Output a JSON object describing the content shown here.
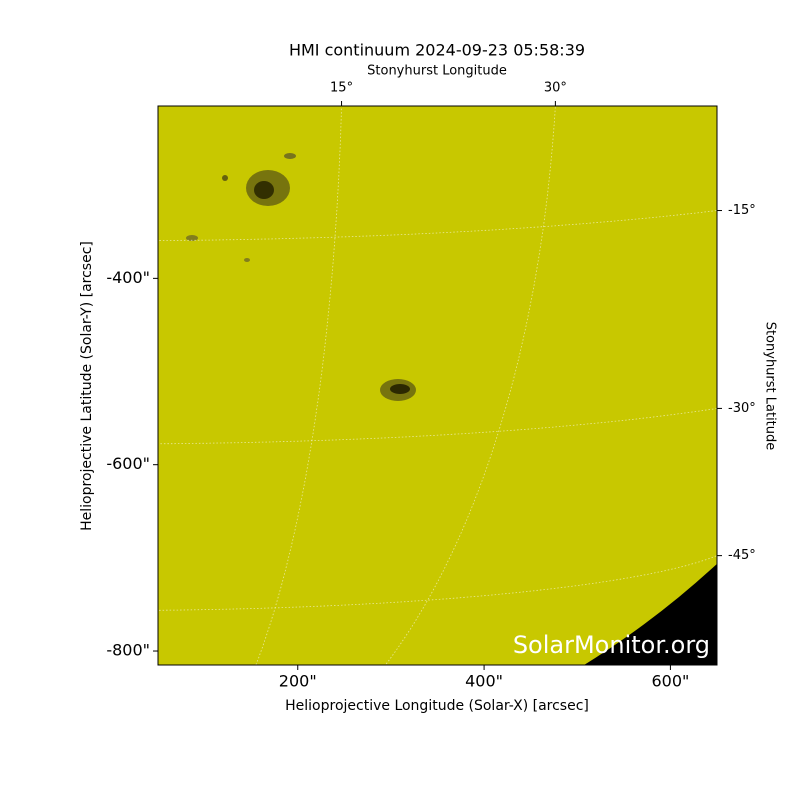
{
  "chart_data": {
    "type": "image",
    "title": "HMI continuum 2024-09-23 05:58:39",
    "xlabel": "Helioprojective Longitude (Solar-X) [arcsec]",
    "ylabel": "Helioprojective Latitude (Solar-Y) [arcsec]",
    "top_label": "Stonyhurst Longitude",
    "right_label": "Stonyhurst Latitude",
    "xlim": [
      50,
      650
    ],
    "ylim": [
      -815,
      -215
    ],
    "xticks": [
      {
        "value": 200,
        "label": "200\""
      },
      {
        "value": 400,
        "label": "400\""
      },
      {
        "value": 600,
        "label": "600\""
      }
    ],
    "yticks": [
      {
        "value": -400,
        "label": "-400\""
      },
      {
        "value": -600,
        "label": "-600\""
      },
      {
        "value": -800,
        "label": "-800\""
      }
    ],
    "top_ticks": [
      {
        "value": 15,
        "label": "15°"
      },
      {
        "value": 30,
        "label": "30°"
      }
    ],
    "right_ticks": [
      {
        "value": -15,
        "label": "-15°"
      },
      {
        "value": -30,
        "label": "-30°"
      },
      {
        "value": -45,
        "label": "-45°"
      }
    ],
    "grid": true,
    "watermark": "SolarMonitor.org"
  }
}
